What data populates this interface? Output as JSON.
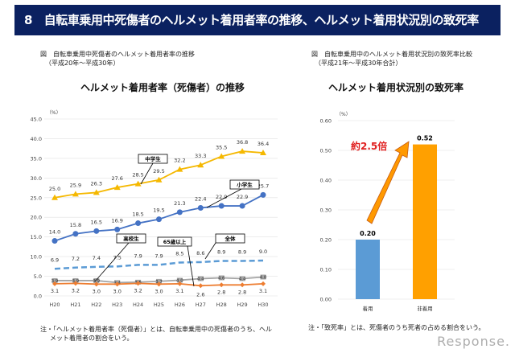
{
  "header": {
    "title": "8　自転車乗用中死傷者のヘルメット着用者率の推移、ヘルメット着用状況別の致死率"
  },
  "left": {
    "caption1": "図　自転車乗用中死傷者のヘルメット着用者率の推移",
    "caption2": "（平成20年～平成30年）",
    "note1": "注・「ヘルメット着用者率（死傷者）」とは、自転車乗用中の死傷者のうち、ヘル",
    "note2": "メット着用者の割合をいう。"
  },
  "right": {
    "caption1": "図　自転車乗用中のヘルメット着用状況別の致死率比較",
    "caption2": "（平成21年～平成30年合計）",
    "note1": "注・「致死率」とは、死傷者のうち死者の占める割合をいう。"
  },
  "watermark": "Response.",
  "chart_data": [
    {
      "type": "line",
      "title": "ヘルメット着用者率（死傷者）の推移",
      "ylabel": "（%）",
      "ylim": [
        0,
        45
      ],
      "yticks": [
        "0.0",
        "5.0",
        "10.0",
        "15.0",
        "20.0",
        "25.0",
        "30.0",
        "35.0",
        "40.0",
        "45.0"
      ],
      "grid": true,
      "categories": [
        "H20",
        "H21",
        "H22",
        "H23",
        "H24",
        "H25",
        "H26",
        "H27",
        "H28",
        "H29",
        "H30"
      ],
      "series": [
        {
          "name": "中学生",
          "color": "#f5b800",
          "marker": "triangle",
          "values": [
            25.0,
            25.9,
            26.3,
            27.6,
            28.5,
            29.5,
            32.2,
            33.3,
            35.5,
            36.8,
            36.4
          ],
          "labels": [
            "25.0",
            "25.9",
            "26.3",
            "27.6",
            "28.5",
            "29.5",
            "32.2",
            "33.3",
            "35.5",
            "36.8",
            "36.4"
          ]
        },
        {
          "name": "小学生",
          "color": "#4472c4",
          "marker": "circle",
          "values": [
            14.0,
            15.8,
            16.5,
            16.9,
            18.5,
            19.5,
            21.3,
            22.4,
            22.9,
            22.9,
            25.7
          ],
          "labels": [
            "14.0",
            "15.8",
            "16.5",
            "16.9",
            "18.5",
            "19.5",
            "21.3",
            "22.4",
            "22.9",
            "22.9",
            "25.7"
          ]
        },
        {
          "name": "全体",
          "color": "#5b9bd5",
          "marker": "none",
          "dashed": true,
          "values": [
            6.9,
            7.2,
            7.4,
            7.5,
            7.9,
            7.9,
            8.5,
            8.6,
            8.9,
            8.9,
            9.0
          ],
          "labels": [
            "6.9",
            "7.2",
            "7.4",
            "7.5",
            "7.9",
            "7.9",
            "8.5",
            "8.6",
            "8.9",
            "8.9",
            "9.0"
          ]
        },
        {
          "name": "高校生",
          "color": "#a5a5a5",
          "marker": "square",
          "values": [
            3.9,
            3.9,
            3.9,
            3.4,
            3.5,
            3.7,
            4.0,
            4.4,
            4.6,
            4.4,
            4.8
          ],
          "labels": [
            "3.9",
            "3.9",
            "3.9",
            "3.4",
            "3.5",
            "3.7",
            "4.0",
            "4.4",
            "4.6",
            "4.4",
            "4.8"
          ]
        },
        {
          "name": "65歳以上",
          "color": "#ed7d31",
          "marker": "diamond",
          "values": [
            3.1,
            3.2,
            3.0,
            3.0,
            3.2,
            3.0,
            3.1,
            2.6,
            2.8,
            2.8,
            3.1
          ],
          "labels": [
            "3.1",
            "3.2",
            "3.0",
            "3.0",
            "3.2",
            "3.0",
            "3.1",
            "2.6",
            "2.8",
            "2.8",
            "3.1"
          ]
        }
      ]
    },
    {
      "type": "bar",
      "title": "ヘルメット着用状況別の致死率",
      "ylabel": "（%）",
      "ylim": [
        0,
        0.6
      ],
      "yticks": [
        "0.00",
        "0.10",
        "0.20",
        "0.30",
        "0.40",
        "0.50",
        "0.60"
      ],
      "grid": true,
      "categories": [
        "着用",
        "非着用"
      ],
      "values": [
        0.2,
        0.52
      ],
      "labels": [
        "0.20",
        "0.52"
      ],
      "colors": [
        "#5b9bd5",
        "#ffa000"
      ],
      "annotation": {
        "text": "約2.5倍",
        "color": "#e02020",
        "arrow_color": "#ff9900"
      }
    }
  ]
}
